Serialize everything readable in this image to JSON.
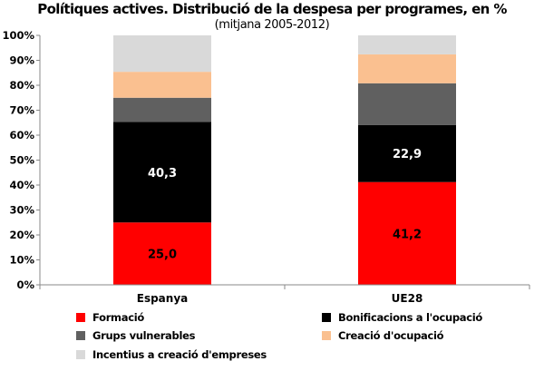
{
  "title": "Polítiques actives. Distribució de la despesa per programes, en %",
  "subtitle": "(mitjana 2005-2012)",
  "chart_data": {
    "type": "bar",
    "stacked": true,
    "categories": [
      "Espanya",
      "UE28"
    ],
    "series": [
      {
        "name": "Formació",
        "values": [
          25.0,
          41.2
        ],
        "labels": [
          "25,0",
          "41,2"
        ],
        "label_color": "#000000",
        "color": "#ff0000"
      },
      {
        "name": "Bonificacions a l'ocupació",
        "values": [
          40.3,
          22.9
        ],
        "labels": [
          "40,3",
          "22,9"
        ],
        "label_color": "#ffffff",
        "color": "#000000"
      },
      {
        "name": "Grups vulnerables",
        "values": [
          9.7,
          16.7
        ],
        "labels": null,
        "color": "#606060"
      },
      {
        "name": "Creació d'ocupació",
        "values": [
          10.4,
          11.6
        ],
        "labels": null,
        "color": "#fac090"
      },
      {
        "name": "Incentius a creació d'empreses",
        "values": [
          14.6,
          7.6
        ],
        "labels": null,
        "color": "#d9d9d9"
      }
    ],
    "ylim": [
      0,
      100
    ],
    "yticks": [
      0,
      10,
      20,
      30,
      40,
      50,
      60,
      70,
      80,
      90,
      100
    ],
    "ytick_labels": [
      "0%",
      "10%",
      "20%",
      "30%",
      "40%",
      "50%",
      "60%",
      "70%",
      "80%",
      "90%",
      "100%"
    ],
    "grid": false,
    "legend_position": "bottom"
  }
}
